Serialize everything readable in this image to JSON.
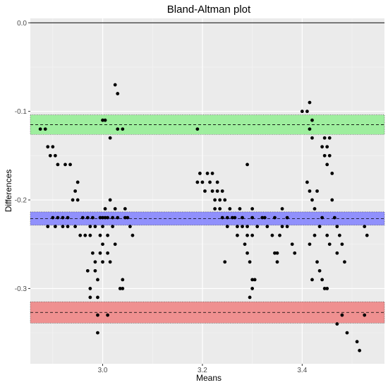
{
  "chart_data": {
    "type": "scatter",
    "title": "Bland-Altman plot",
    "xlabel": "Means",
    "ylabel": "Differences",
    "xlim": [
      2.855,
      3.565
    ],
    "ylim": [
      -0.385,
      0.005
    ],
    "x_ticks": [
      3.0,
      3.2,
      3.4
    ],
    "x_tick_labels": [
      "3.0",
      "3.2",
      "3.4"
    ],
    "y_ticks": [
      0.0,
      -0.1,
      -0.2,
      -0.3
    ],
    "y_tick_labels": [
      "0.0",
      "-0.1",
      "-0.2",
      "-0.3"
    ],
    "grid": true,
    "background": "#ebebeb",
    "reference_line": 0.0,
    "bands": [
      {
        "name": "upper limit of agreement",
        "center": -0.115,
        "lower": -0.126,
        "upper": -0.104,
        "color": "#90ee90"
      },
      {
        "name": "mean difference",
        "center": -0.221,
        "lower": -0.2285,
        "upper": -0.2135,
        "color": "#8080ff"
      },
      {
        "name": "lower limit of agreement",
        "center": -0.327,
        "lower": -0.339,
        "upper": -0.315,
        "color": "#f08080"
      }
    ],
    "points": [
      [
        2.875,
        -0.12
      ],
      [
        2.885,
        -0.12
      ],
      [
        2.89,
        -0.14
      ],
      [
        2.895,
        -0.15
      ],
      [
        2.9,
        -0.14
      ],
      [
        2.905,
        -0.15
      ],
      [
        2.91,
        -0.16
      ],
      [
        2.89,
        -0.23
      ],
      [
        2.9,
        -0.22
      ],
      [
        2.905,
        -0.23
      ],
      [
        2.91,
        -0.22
      ],
      [
        2.92,
        -0.22
      ],
      [
        2.92,
        -0.23
      ],
      [
        2.93,
        -0.22
      ],
      [
        2.93,
        -0.23
      ],
      [
        2.925,
        -0.16
      ],
      [
        2.935,
        -0.16
      ],
      [
        2.94,
        -0.2
      ],
      [
        2.945,
        -0.19
      ],
      [
        2.95,
        -0.2
      ],
      [
        2.95,
        -0.18
      ],
      [
        2.945,
        -0.23
      ],
      [
        2.955,
        -0.24
      ],
      [
        2.96,
        -0.22
      ],
      [
        2.965,
        -0.24
      ],
      [
        2.97,
        -0.22
      ],
      [
        2.975,
        -0.23
      ],
      [
        2.975,
        -0.24
      ],
      [
        2.98,
        -0.22
      ],
      [
        2.985,
        -0.23
      ],
      [
        2.97,
        -0.28
      ],
      [
        2.975,
        -0.31
      ],
      [
        2.975,
        -0.3
      ],
      [
        2.98,
        -0.26
      ],
      [
        2.985,
        -0.27
      ],
      [
        2.985,
        -0.28
      ],
      [
        2.99,
        -0.29
      ],
      [
        2.99,
        -0.31
      ],
      [
        2.995,
        -0.24
      ],
      [
        2.995,
        -0.26
      ],
      [
        2.99,
        -0.33
      ],
      [
        2.99,
        -0.35
      ],
      [
        2.995,
        -0.22
      ],
      [
        3.0,
        -0.22
      ],
      [
        3.0,
        -0.23
      ],
      [
        3.0,
        -0.25
      ],
      [
        3.0,
        -0.27
      ],
      [
        3.005,
        -0.21
      ],
      [
        3.005,
        -0.22
      ],
      [
        3.01,
        -0.22
      ],
      [
        3.01,
        -0.24
      ],
      [
        3.01,
        -0.26
      ],
      [
        3.015,
        -0.27
      ],
      [
        3.015,
        -0.2
      ],
      [
        3.02,
        -0.22
      ],
      [
        3.02,
        -0.23
      ],
      [
        3.025,
        -0.21
      ],
      [
        3.025,
        -0.25
      ],
      [
        3.0,
        -0.11
      ],
      [
        3.005,
        -0.11
      ],
      [
        3.01,
        -0.33
      ],
      [
        3.015,
        -0.13
      ],
      [
        3.025,
        -0.07
      ],
      [
        3.03,
        -0.08
      ],
      [
        3.03,
        -0.12
      ],
      [
        3.04,
        -0.12
      ],
      [
        3.03,
        -0.22
      ],
      [
        3.035,
        -0.3
      ],
      [
        3.04,
        -0.29
      ],
      [
        3.04,
        -0.3
      ],
      [
        3.045,
        -0.22
      ],
      [
        3.05,
        -0.22
      ],
      [
        3.045,
        -0.21
      ],
      [
        3.055,
        -0.23
      ],
      [
        3.06,
        -0.24
      ],
      [
        3.19,
        -0.12
      ],
      [
        3.19,
        -0.18
      ],
      [
        3.195,
        -0.17
      ],
      [
        3.2,
        -0.18
      ],
      [
        3.205,
        -0.19
      ],
      [
        3.21,
        -0.17
      ],
      [
        3.215,
        -0.18
      ],
      [
        3.22,
        -0.17
      ],
      [
        3.22,
        -0.19
      ],
      [
        3.225,
        -0.2
      ],
      [
        3.225,
        -0.21
      ],
      [
        3.23,
        -0.18
      ],
      [
        3.23,
        -0.19
      ],
      [
        3.235,
        -0.2
      ],
      [
        3.235,
        -0.21
      ],
      [
        3.24,
        -0.19
      ],
      [
        3.24,
        -0.22
      ],
      [
        3.245,
        -0.2
      ],
      [
        3.245,
        -0.27
      ],
      [
        3.25,
        -0.22
      ],
      [
        3.25,
        -0.23
      ],
      [
        3.255,
        -0.21
      ],
      [
        3.26,
        -0.22
      ],
      [
        3.265,
        -0.22
      ],
      [
        3.27,
        -0.23
      ],
      [
        3.27,
        -0.24
      ],
      [
        3.275,
        -0.21
      ],
      [
        3.28,
        -0.22
      ],
      [
        3.28,
        -0.23
      ],
      [
        3.285,
        -0.25
      ],
      [
        3.29,
        -0.23
      ],
      [
        3.29,
        -0.24
      ],
      [
        3.29,
        -0.26
      ],
      [
        3.295,
        -0.27
      ],
      [
        3.29,
        -0.16
      ],
      [
        3.3,
        -0.21
      ],
      [
        3.3,
        -0.22
      ],
      [
        3.3,
        -0.24
      ],
      [
        3.295,
        -0.31
      ],
      [
        3.3,
        -0.3
      ],
      [
        3.3,
        -0.29
      ],
      [
        3.305,
        -0.29
      ],
      [
        3.31,
        -0.23
      ],
      [
        3.32,
        -0.22
      ],
      [
        3.325,
        -0.22
      ],
      [
        3.33,
        -0.23
      ],
      [
        3.34,
        -0.24
      ],
      [
        3.345,
        -0.22
      ],
      [
        3.345,
        -0.26
      ],
      [
        3.35,
        -0.27
      ],
      [
        3.35,
        -0.26
      ],
      [
        3.355,
        -0.24
      ],
      [
        3.36,
        -0.21
      ],
      [
        3.36,
        -0.23
      ],
      [
        3.37,
        -0.22
      ],
      [
        3.37,
        -0.23
      ],
      [
        3.38,
        -0.25
      ],
      [
        3.385,
        -0.26
      ],
      [
        3.4,
        -0.1
      ],
      [
        3.41,
        -0.1
      ],
      [
        3.415,
        -0.12
      ],
      [
        3.415,
        -0.09
      ],
      [
        3.42,
        -0.11
      ],
      [
        3.42,
        -0.13
      ],
      [
        3.41,
        -0.18
      ],
      [
        3.415,
        -0.19
      ],
      [
        3.42,
        -0.2
      ],
      [
        3.425,
        -0.21
      ],
      [
        3.43,
        -0.19
      ],
      [
        3.435,
        -0.23
      ],
      [
        3.44,
        -0.22
      ],
      [
        3.44,
        -0.14
      ],
      [
        3.445,
        -0.13
      ],
      [
        3.445,
        -0.15
      ],
      [
        3.45,
        -0.14
      ],
      [
        3.45,
        -0.16
      ],
      [
        3.455,
        -0.13
      ],
      [
        3.455,
        -0.15
      ],
      [
        3.46,
        -0.17
      ],
      [
        3.415,
        -0.25
      ],
      [
        3.42,
        -0.29
      ],
      [
        3.425,
        -0.24
      ],
      [
        3.43,
        -0.27
      ],
      [
        3.435,
        -0.28
      ],
      [
        3.44,
        -0.29
      ],
      [
        3.445,
        -0.3
      ],
      [
        3.45,
        -0.24
      ],
      [
        3.45,
        -0.3
      ],
      [
        3.455,
        -0.25
      ],
      [
        3.46,
        -0.2
      ],
      [
        3.465,
        -0.22
      ],
      [
        3.47,
        -0.23
      ],
      [
        3.47,
        -0.26
      ],
      [
        3.475,
        -0.24
      ],
      [
        3.48,
        -0.25
      ],
      [
        3.485,
        -0.27
      ],
      [
        3.47,
        -0.34
      ],
      [
        3.48,
        -0.33
      ],
      [
        3.49,
        -0.35
      ],
      [
        3.51,
        -0.36
      ],
      [
        3.515,
        -0.37
      ],
      [
        3.525,
        -0.23
      ],
      [
        3.525,
        -0.33
      ],
      [
        3.53,
        -0.24
      ]
    ]
  }
}
